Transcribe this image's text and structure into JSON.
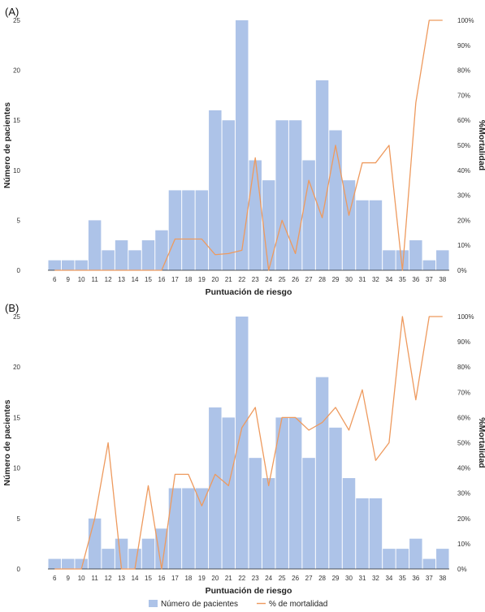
{
  "chart_data": [
    {
      "panel_label": "(A)",
      "type": "bar",
      "categories": [
        "6",
        "9",
        "10",
        "11",
        "12",
        "13",
        "14",
        "15",
        "16",
        "17",
        "18",
        "19",
        "20",
        "21",
        "22",
        "23",
        "24",
        "25",
        "26",
        "27",
        "28",
        "29",
        "30",
        "31",
        "32",
        "34",
        "35",
        "36",
        "37",
        "38"
      ],
      "series": [
        {
          "name": "Número de pacientes",
          "type": "bar",
          "axis": "left",
          "values": [
            1,
            1,
            1,
            5,
            2,
            3,
            2,
            3,
            4,
            8,
            8,
            8,
            16,
            15,
            25,
            11,
            9,
            15,
            15,
            11,
            19,
            14,
            9,
            7,
            7,
            2,
            2,
            3,
            1,
            2
          ]
        },
        {
          "name": "% de mortalidad",
          "type": "line",
          "axis": "right",
          "values": [
            0,
            0,
            0,
            0,
            0,
            0,
            0,
            0,
            0,
            12.5,
            12.5,
            12.5,
            6.25,
            6.7,
            8,
            45,
            0,
            20,
            6.7,
            36,
            21,
            50,
            22,
            43,
            43,
            50,
            0,
            67,
            100,
            100
          ]
        }
      ],
      "xlabel": "Puntuación de riesgo",
      "ylabel": "Número de pacientes",
      "y2label": "%Mortalidad",
      "ylim": [
        0,
        25
      ],
      "yticks": [
        "0",
        "5",
        "10",
        "15",
        "20",
        "25"
      ],
      "y2lim": [
        0,
        100
      ],
      "y2ticks": [
        "0%",
        "10%",
        "20%",
        "30%",
        "40%",
        "50%",
        "60%",
        "70%",
        "80%",
        "90%",
        "100%"
      ],
      "grid": false
    },
    {
      "panel_label": "(B)",
      "type": "bar",
      "categories": [
        "6",
        "9",
        "10",
        "11",
        "12",
        "13",
        "14",
        "15",
        "16",
        "17",
        "18",
        "19",
        "20",
        "21",
        "22",
        "23",
        "24",
        "25",
        "26",
        "27",
        "28",
        "29",
        "30",
        "31",
        "32",
        "34",
        "35",
        "36",
        "37",
        "38"
      ],
      "series": [
        {
          "name": "Número de pacientes",
          "type": "bar",
          "axis": "left",
          "values": [
            1,
            1,
            1,
            5,
            2,
            3,
            2,
            3,
            4,
            8,
            8,
            8,
            16,
            15,
            25,
            11,
            9,
            15,
            15,
            11,
            19,
            14,
            9,
            7,
            7,
            2,
            2,
            3,
            1,
            2
          ]
        },
        {
          "name": "% de mortalidad",
          "type": "line",
          "axis": "right",
          "values": [
            0,
            0,
            0,
            20,
            50,
            0,
            0,
            33,
            0,
            37.5,
            37.5,
            25,
            37.5,
            33,
            56,
            64,
            33,
            60,
            60,
            55,
            58,
            64,
            55,
            71,
            43,
            50,
            100,
            67,
            100,
            100
          ]
        }
      ],
      "xlabel": "Puntuación de riesgo",
      "ylabel": "Número de pacientes",
      "y2label": "%Mortalidad",
      "ylim": [
        0,
        25
      ],
      "yticks": [
        "0",
        "5",
        "10",
        "15",
        "20",
        "25"
      ],
      "y2lim": [
        0,
        100
      ],
      "y2ticks": [
        "0%",
        "10%",
        "20%",
        "30%",
        "40%",
        "50%",
        "60%",
        "70%",
        "80%",
        "90%",
        "100%"
      ],
      "grid": false
    }
  ],
  "legend": {
    "placement": "bottom-center",
    "items": [
      {
        "label": "Número de pacientes",
        "kind": "bar"
      },
      {
        "label": "% de mortalidad",
        "kind": "line"
      }
    ]
  },
  "colors": {
    "bar": "#adc3e8",
    "line": "#ee9a5e",
    "axis": "#222222"
  }
}
